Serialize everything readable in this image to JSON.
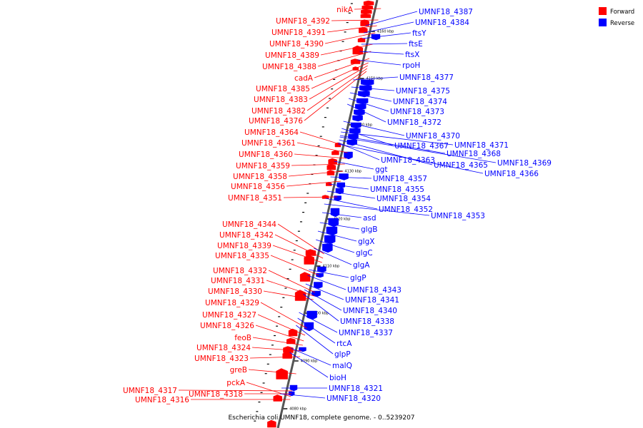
{
  "caption": "Escherichia coli UMNF18, complete genome. - 0..5239207",
  "legend": [
    {
      "label": "Forward",
      "color": "#ff0000"
    },
    {
      "label": "Reverse",
      "color": "#0000ff"
    }
  ],
  "colors": {
    "forward": "#ff0000",
    "reverse": "#0000ff",
    "backbone": "#555555"
  },
  "tick_labels": [
    "4080 kbp",
    "4090 kbp",
    "4100 kbp",
    "4110 kbp",
    "4120 kbp",
    "4130 kbp",
    "4140 kbp",
    "4150 kbp",
    "4160 kbp"
  ],
  "forward_labels": [
    "nikA",
    "UMNF18_4392",
    "UMNF18_4391",
    "UMNF18_4390",
    "UMNF18_4389",
    "UMNF18_4388",
    "cadA",
    "UMNF18_4385",
    "UMNF18_4383",
    "UMNF18_4382",
    "UMNF18_4376",
    "UMNF18_4364",
    "UMNF18_4361",
    "UMNF18_4360",
    "UMNF18_4359",
    "UMNF18_4358",
    "UMNF18_4356",
    "UMNF18_4351",
    "UMNF18_4344",
    "UMNF18_4342",
    "UMNF18_4339",
    "UMNF18_4335",
    "UMNF18_4332",
    "UMNF18_4331",
    "UMNF18_4330",
    "UMNF18_4329",
    "UMNF18_4327",
    "UMNF18_4326",
    "feoB",
    "UMNF18_4324",
    "UMNF18_4323",
    "greB",
    "pckA",
    "UMNF18_4317",
    "UMNF18_4318",
    "UMNF18_4316"
  ],
  "reverse_labels": [
    "UMNF18_4387",
    "UMNF18_4384",
    "ftsY",
    "ftsE",
    "ftsX",
    "rpoH",
    "UMNF18_4377",
    "UMNF18_4375",
    "UMNF18_4374",
    "UMNF18_4373",
    "UMNF18_4372",
    "UMNF18_4370",
    "UMNF18_4367",
    "UMNF18_4371",
    "UMNF18_4368",
    "UMNF18_4363",
    "UMNF18_4369",
    "UMNF18_4365",
    "ggt",
    "UMNF18_4366",
    "UMNF18_4357",
    "UMNF18_4355",
    "UMNF18_4354",
    "UMNF18_4352",
    "UMNF18_4353",
    "asd",
    "glgB",
    "glgX",
    "glgC",
    "glgA",
    "glgP",
    "UMNF18_4343",
    "UMNF18_4341",
    "UMNF18_4340",
    "UMNF18_4338",
    "UMNF18_4337",
    "rtcA",
    "glpP",
    "malQ",
    "bioH",
    "UMNF18_4321",
    "UMNF18_4320"
  ]
}
